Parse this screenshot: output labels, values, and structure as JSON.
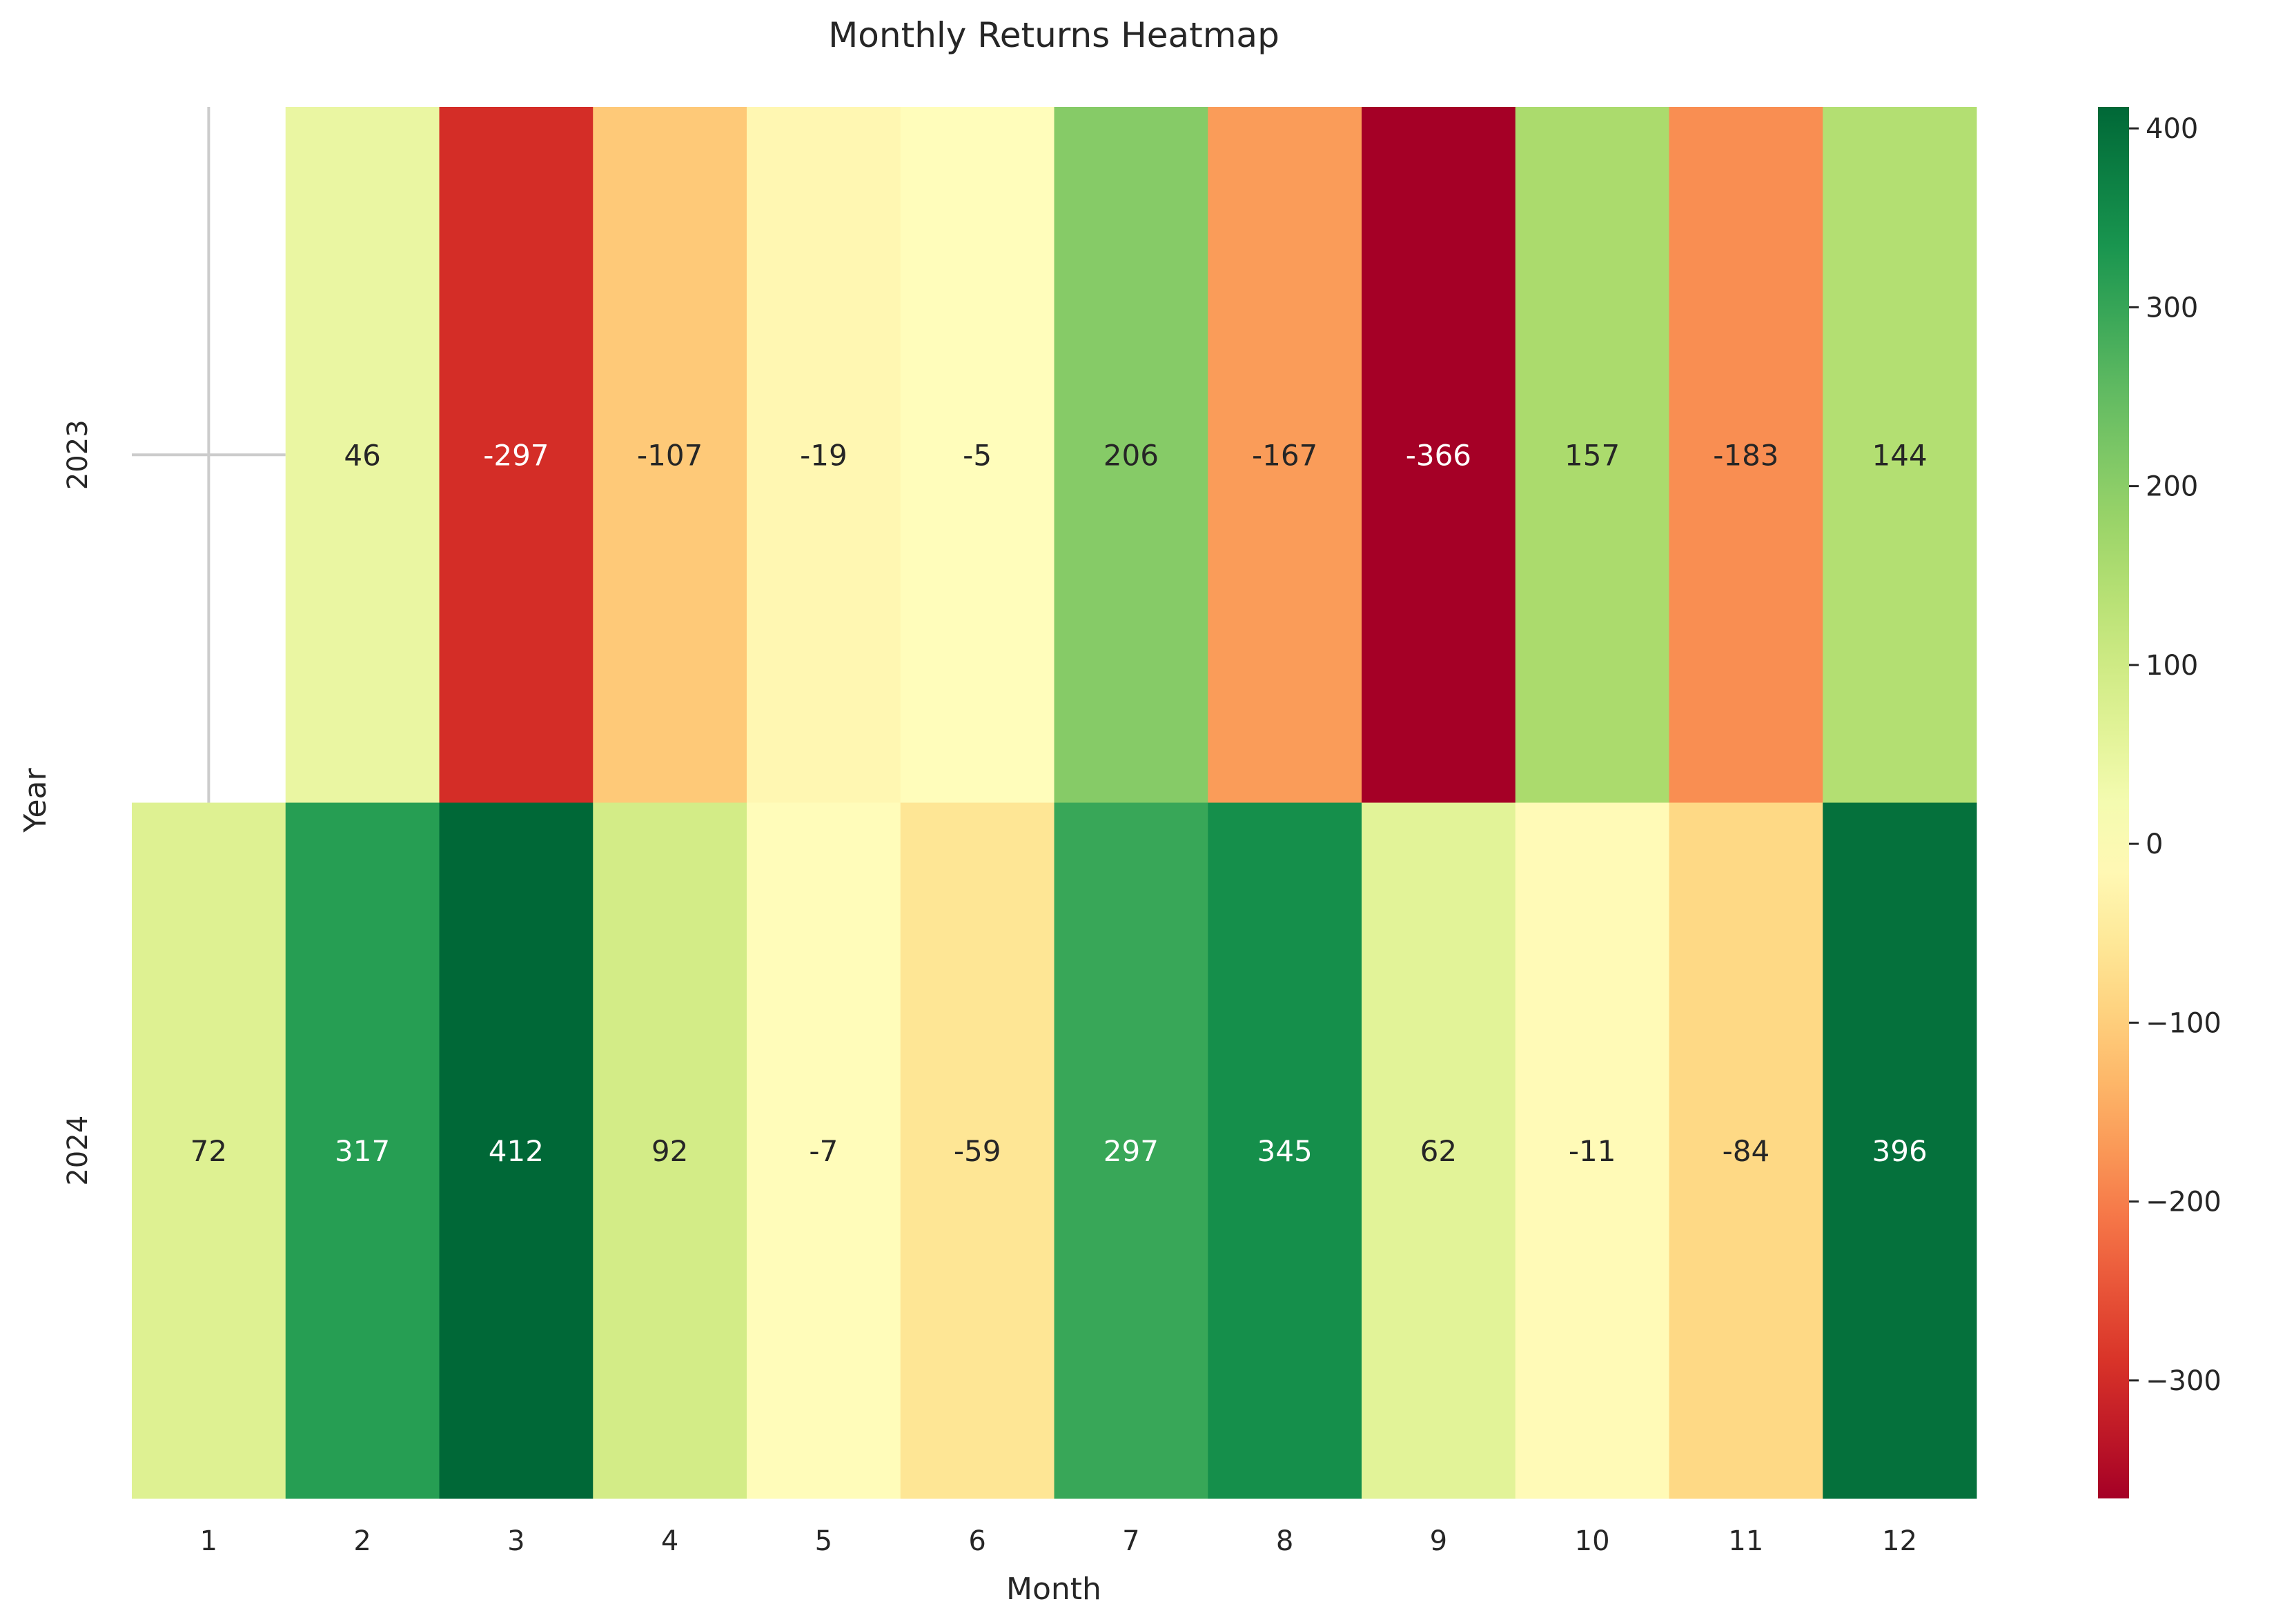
{
  "chart_data": {
    "type": "heatmap",
    "title": "Monthly Returns Heatmap",
    "xlabel": "Month",
    "ylabel": "Year",
    "x_categories": [
      "1",
      "2",
      "3",
      "4",
      "5",
      "6",
      "7",
      "8",
      "9",
      "10",
      "11",
      "12"
    ],
    "y_categories": [
      "2023",
      "2024"
    ],
    "values": [
      [
        null,
        46,
        -297,
        -107,
        -19,
        -5,
        206,
        -167,
        -366,
        157,
        -183,
        144
      ],
      [
        72,
        317,
        412,
        92,
        -7,
        -59,
        297,
        345,
        62,
        -11,
        -84,
        396
      ]
    ],
    "colormap": "RdYlGn",
    "vmin": -366,
    "vmax": 412,
    "colorbar_ticks": [
      400,
      300,
      200,
      100,
      0,
      -100,
      -200,
      -300
    ],
    "colorbar_tick_labels": [
      "400",
      "300",
      "200",
      "100",
      "0",
      "−100",
      "−200",
      "−300"
    ]
  }
}
